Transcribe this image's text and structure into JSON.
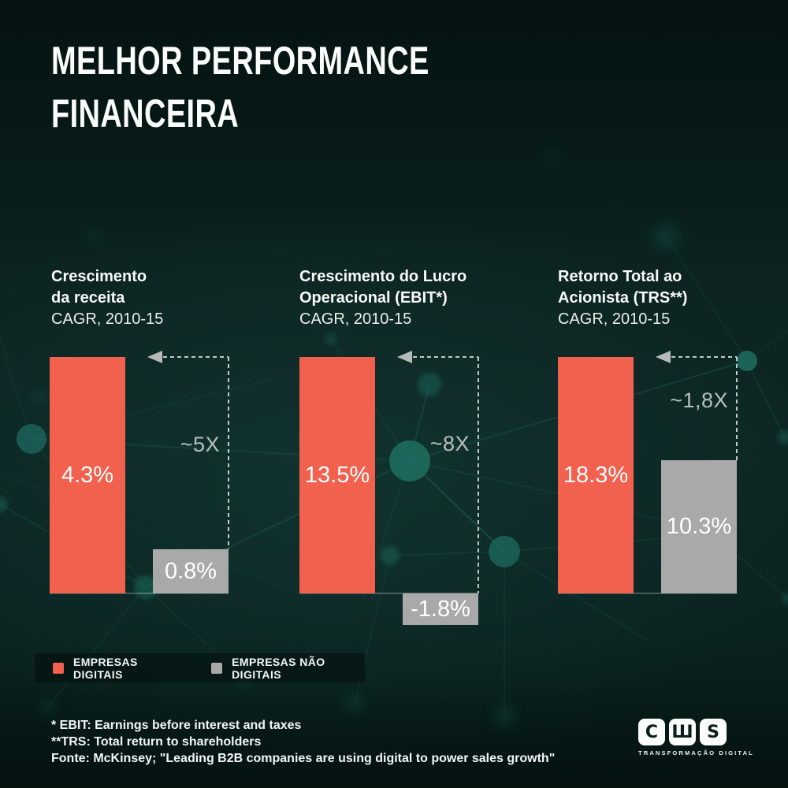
{
  "title": {
    "line1": "MELHOR PERFORMANCE",
    "line2": "FINANCEIRA"
  },
  "chart_data": {
    "type": "bar",
    "unit": "% CAGR, 2010-15",
    "note": "bars normalized per panel; digital bar drawn full height",
    "categories": [
      "Crescimento da receita",
      "Crescimento do Lucro Operacional (EBIT*)",
      "Retorno Total ao Acionista (TRS**)"
    ],
    "series": [
      {
        "name": "EMPRESAS DIGITAIS",
        "color": "#F2604E",
        "values": [
          4.3,
          13.5,
          18.3
        ]
      },
      {
        "name": "EMPRESAS NÃO DIGITAIS",
        "color": "#A9A9A9",
        "values": [
          0.8,
          -1.8,
          10.3
        ]
      }
    ],
    "multipliers": [
      "~5X",
      "~8X",
      "~1,8X"
    ],
    "panels": [
      {
        "heading_line1": "Crescimento",
        "heading_line2": "da receita",
        "subtitle": "CAGR, 2010-15",
        "digital_value": 4.3,
        "digital_label": "4.3%",
        "non_digital_value": 0.8,
        "non_digital_label": "0.8%",
        "multiplier": "~5X"
      },
      {
        "heading_line1": "Crescimento do Lucro",
        "heading_line2": "Operacional (EBIT*)",
        "subtitle": "CAGR, 2010-15",
        "digital_value": 13.5,
        "digital_label": "13.5%",
        "non_digital_value": -1.8,
        "non_digital_label": "-1.8%",
        "multiplier": "~8X"
      },
      {
        "heading_line1": "Retorno Total ao",
        "heading_line2": "Acionista (TRS**)",
        "subtitle": "CAGR, 2010-15",
        "digital_value": 18.3,
        "digital_label": "18.3%",
        "non_digital_value": 10.3,
        "non_digital_label": "10.3%",
        "multiplier": "~1,8X"
      }
    ]
  },
  "legend": {
    "items": [
      {
        "label": "EMPRESAS DIGITAIS",
        "color": "#F2604E"
      },
      {
        "label": "EMPRESAS NÃO DIGITAIS",
        "color": "#A9A9A9"
      }
    ]
  },
  "footnotes": [
    "* EBIT: Earnings before interest and taxes",
    "**TRS: Total return to shareholders",
    "Fonte: McKinsey; \"Leading B2B companies are using digital to power sales growth\""
  ],
  "logo": {
    "letters": [
      "C",
      "Ш",
      "S"
    ],
    "tagline": "TRANSFORMAÇÃO DIGITAL"
  },
  "colors": {
    "digital": "#F2604E",
    "non_digital": "#A9A9A9",
    "background": "#0C2422",
    "annotation": "#B7C0BD",
    "dashed_line": "#DFE6E4",
    "plexus_node": "#1E6E62",
    "plexus_line": "#1A5C52"
  }
}
